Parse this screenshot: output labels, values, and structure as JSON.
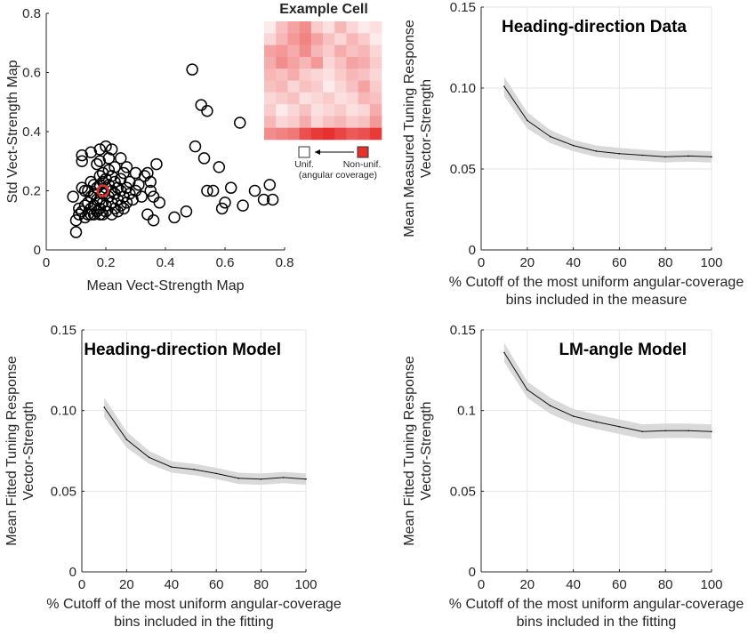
{
  "colors": {
    "highlight": "#e8302b",
    "band": "#d9d9d9",
    "line": "#111111"
  },
  "chart_data": [
    {
      "type": "scatter",
      "xlabel": "Mean Vect-Strength Map",
      "ylabel": "Std Vect-Strength Map",
      "xlim": [
        0,
        0.8
      ],
      "ylim": [
        0,
        0.8
      ],
      "xticks": [
        "0",
        "0.2",
        "0.4",
        "0.6",
        "0.8"
      ],
      "yticks": [
        "0",
        "0.2",
        "0.4",
        "0.6",
        "0.8"
      ],
      "grid": false,
      "highlight_point": {
        "x": 0.19,
        "y": 0.2
      },
      "points": [
        [
          0.09,
          0.18
        ],
        [
          0.1,
          0.06
        ],
        [
          0.1,
          0.1
        ],
        [
          0.11,
          0.12
        ],
        [
          0.11,
          0.14
        ],
        [
          0.12,
          0.13
        ],
        [
          0.12,
          0.21
        ],
        [
          0.12,
          0.3
        ],
        [
          0.12,
          0.32
        ],
        [
          0.13,
          0.11
        ],
        [
          0.13,
          0.15
        ],
        [
          0.13,
          0.2
        ],
        [
          0.14,
          0.12
        ],
        [
          0.14,
          0.16
        ],
        [
          0.14,
          0.2
        ],
        [
          0.15,
          0.12
        ],
        [
          0.15,
          0.14
        ],
        [
          0.15,
          0.18
        ],
        [
          0.15,
          0.23
        ],
        [
          0.15,
          0.33
        ],
        [
          0.16,
          0.12
        ],
        [
          0.16,
          0.15
        ],
        [
          0.16,
          0.19
        ],
        [
          0.16,
          0.22
        ],
        [
          0.17,
          0.13
        ],
        [
          0.17,
          0.17
        ],
        [
          0.17,
          0.21
        ],
        [
          0.17,
          0.29
        ],
        [
          0.18,
          0.12
        ],
        [
          0.18,
          0.14
        ],
        [
          0.18,
          0.17
        ],
        [
          0.18,
          0.22
        ],
        [
          0.18,
          0.25
        ],
        [
          0.18,
          0.3
        ],
        [
          0.18,
          0.34
        ],
        [
          0.19,
          0.12
        ],
        [
          0.19,
          0.16
        ],
        [
          0.19,
          0.19
        ],
        [
          0.19,
          0.23
        ],
        [
          0.19,
          0.26
        ],
        [
          0.2,
          0.13
        ],
        [
          0.2,
          0.15
        ],
        [
          0.2,
          0.21
        ],
        [
          0.2,
          0.24
        ],
        [
          0.2,
          0.35
        ],
        [
          0.21,
          0.18
        ],
        [
          0.21,
          0.22
        ],
        [
          0.21,
          0.27
        ],
        [
          0.21,
          0.31
        ],
        [
          0.22,
          0.12
        ],
        [
          0.22,
          0.16
        ],
        [
          0.22,
          0.2
        ],
        [
          0.22,
          0.25
        ],
        [
          0.22,
          0.34
        ],
        [
          0.23,
          0.14
        ],
        [
          0.23,
          0.19
        ],
        [
          0.23,
          0.23
        ],
        [
          0.23,
          0.28
        ],
        [
          0.24,
          0.13
        ],
        [
          0.24,
          0.17
        ],
        [
          0.24,
          0.21
        ],
        [
          0.25,
          0.15
        ],
        [
          0.25,
          0.2
        ],
        [
          0.25,
          0.24
        ],
        [
          0.25,
          0.31
        ],
        [
          0.26,
          0.14
        ],
        [
          0.26,
          0.18
        ],
        [
          0.26,
          0.26
        ],
        [
          0.27,
          0.16
        ],
        [
          0.27,
          0.21
        ],
        [
          0.27,
          0.28
        ],
        [
          0.28,
          0.19
        ],
        [
          0.28,
          0.23
        ],
        [
          0.29,
          0.17
        ],
        [
          0.3,
          0.2
        ],
        [
          0.3,
          0.26
        ],
        [
          0.31,
          0.22
        ],
        [
          0.32,
          0.18
        ],
        [
          0.33,
          0.25
        ],
        [
          0.34,
          0.26
        ],
        [
          0.34,
          0.12
        ],
        [
          0.35,
          0.2
        ],
        [
          0.35,
          0.23
        ],
        [
          0.36,
          0.1
        ],
        [
          0.36,
          0.18
        ],
        [
          0.37,
          0.29
        ],
        [
          0.38,
          0.16
        ],
        [
          0.43,
          0.11
        ],
        [
          0.47,
          0.13
        ],
        [
          0.49,
          0.61
        ],
        [
          0.5,
          0.35
        ],
        [
          0.52,
          0.49
        ],
        [
          0.53,
          0.31
        ],
        [
          0.54,
          0.47
        ],
        [
          0.54,
          0.2
        ],
        [
          0.56,
          0.2
        ],
        [
          0.58,
          0.28
        ],
        [
          0.59,
          0.14
        ],
        [
          0.6,
          0.16
        ],
        [
          0.62,
          0.21
        ],
        [
          0.65,
          0.43
        ],
        [
          0.66,
          0.15
        ],
        [
          0.7,
          0.2
        ],
        [
          0.73,
          0.17
        ],
        [
          0.75,
          0.22
        ],
        [
          0.76,
          0.17
        ]
      ],
      "inset": {
        "title": "Example Cell",
        "legend_left": "Unif.",
        "legend_right": "Non-unif.",
        "legend_sub": "(angular coverage)",
        "grid_rows": 10,
        "grid_cols": 10,
        "cells": [
          [
            0.1,
            0.3,
            0.45,
            0.55,
            0.25,
            0.15,
            0.35,
            0.2,
            0.1,
            0.15
          ],
          [
            0.2,
            0.35,
            0.5,
            0.6,
            0.45,
            0.3,
            0.2,
            0.35,
            0.25,
            0.1
          ],
          [
            0.45,
            0.5,
            0.4,
            0.55,
            0.35,
            0.25,
            0.4,
            0.3,
            0.35,
            0.2
          ],
          [
            0.4,
            0.55,
            0.45,
            0.35,
            0.5,
            0.2,
            0.3,
            0.45,
            0.4,
            0.25
          ],
          [
            0.35,
            0.3,
            0.4,
            0.25,
            0.2,
            0.15,
            0.25,
            0.35,
            0.3,
            0.2
          ],
          [
            0.3,
            0.35,
            0.2,
            0.3,
            0.25,
            0.1,
            0.2,
            0.3,
            0.45,
            0.25
          ],
          [
            0.2,
            0.25,
            0.3,
            0.15,
            0.2,
            0.25,
            0.15,
            0.2,
            0.35,
            0.3
          ],
          [
            0.25,
            0.1,
            0.2,
            0.3,
            0.15,
            0.2,
            0.25,
            0.15,
            0.2,
            0.4
          ],
          [
            0.35,
            0.2,
            0.25,
            0.4,
            0.2,
            0.3,
            0.35,
            0.25,
            0.3,
            0.5
          ],
          [
            0.55,
            0.6,
            0.65,
            0.85,
            0.95,
            1.0,
            0.9,
            0.8,
            0.85,
            0.95
          ]
        ]
      }
    },
    {
      "type": "line",
      "title": "Heading-direction Data",
      "xlabel": "% Cutoff of the most uniform angular-coverage\nbins included in the measure",
      "ylabel": "Mean Measured Tuning Response\nVector-Strength",
      "xlim": [
        0,
        100
      ],
      "ylim": [
        0,
        0.15
      ],
      "xticks": [
        "0",
        "20",
        "40",
        "60",
        "80",
        "100"
      ],
      "yticks": [
        "0",
        "0.05",
        "0.10",
        "0.15"
      ],
      "grid": true,
      "x": [
        10,
        20,
        30,
        40,
        50,
        60,
        70,
        80,
        90,
        100
      ],
      "y": [
        0.101,
        0.08,
        0.07,
        0.0645,
        0.061,
        0.0595,
        0.0585,
        0.0575,
        0.058,
        0.0575
      ],
      "band": [
        0.006,
        0.005,
        0.004,
        0.0035,
        0.0035,
        0.0035,
        0.0035,
        0.0035,
        0.0035,
        0.0035
      ]
    },
    {
      "type": "line",
      "title": "Heading-direction Model",
      "xlabel": "% Cutoff of the most uniform angular-coverage\nbins included in the fitting",
      "ylabel": "Mean Fitted Tuning Response\nVector-Strength",
      "xlim": [
        0,
        100
      ],
      "ylim": [
        0,
        0.15
      ],
      "xticks": [
        "0",
        "20",
        "40",
        "60",
        "80",
        "100"
      ],
      "yticks": [
        "0",
        "0.05",
        "0.10",
        "0.15"
      ],
      "grid": true,
      "x": [
        10,
        20,
        30,
        40,
        50,
        60,
        70,
        80,
        90,
        100
      ],
      "y": [
        0.102,
        0.082,
        0.071,
        0.065,
        0.0635,
        0.061,
        0.058,
        0.0575,
        0.0585,
        0.0575
      ],
      "band": [
        0.006,
        0.005,
        0.004,
        0.0035,
        0.0035,
        0.0035,
        0.0035,
        0.0035,
        0.0035,
        0.0035
      ]
    },
    {
      "type": "line",
      "title": "LM-angle Model",
      "xlabel": "% Cutoff of the most uniform angular-coverage\nbins included in the fitting",
      "ylabel": "Mean Fitted Tuning Response\nVector-Strength",
      "xlim": [
        0,
        100
      ],
      "ylim": [
        0,
        0.15
      ],
      "xticks": [
        "0",
        "20",
        "40",
        "60",
        "80",
        "100"
      ],
      "yticks": [
        "0",
        "0.05",
        "0.1",
        "0.15"
      ],
      "grid": true,
      "x": [
        10,
        20,
        30,
        40,
        50,
        60,
        70,
        80,
        90,
        100
      ],
      "y": [
        0.136,
        0.113,
        0.103,
        0.0965,
        0.093,
        0.09,
        0.087,
        0.0875,
        0.0875,
        0.087
      ],
      "band": [
        0.006,
        0.005,
        0.005,
        0.0045,
        0.0045,
        0.0045,
        0.0045,
        0.0045,
        0.0045,
        0.0045
      ]
    }
  ]
}
